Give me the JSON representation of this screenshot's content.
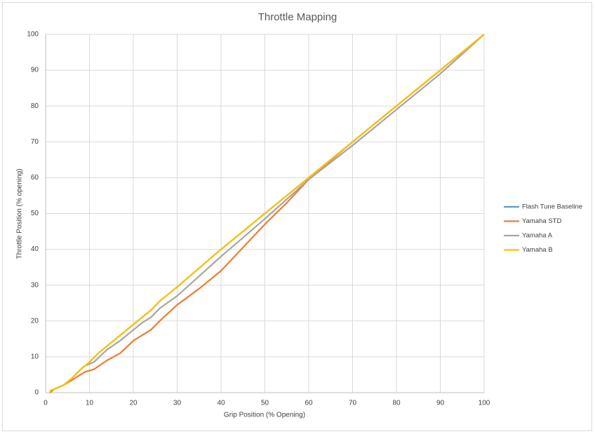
{
  "chart_data": {
    "type": "line",
    "title": "Throttle Mapping",
    "x_label": "Grip Position (% Opening)",
    "y_label": "Throttle Position (% opening)",
    "xlim": [
      0,
      100
    ],
    "xticks": [
      0,
      10,
      20,
      30,
      40,
      50,
      60,
      70,
      80,
      90,
      100
    ],
    "ylim": [
      0,
      100
    ],
    "yticks": [
      0,
      10,
      20,
      30,
      40,
      50,
      60,
      70,
      80,
      90,
      100
    ],
    "grid": true,
    "legend": "right",
    "series": [
      {
        "name": "Flash Tune Baseline",
        "color": "#5b9bd5",
        "x": [
          1,
          2,
          4,
          6,
          8,
          10,
          12,
          14,
          17,
          20,
          24,
          26,
          30,
          40,
          50,
          60,
          70,
          80,
          90,
          100
        ],
        "values": [
          0.5,
          1,
          2,
          4,
          6.5,
          8.5,
          11,
          13,
          16,
          19,
          23,
          25.5,
          29.5,
          40,
          50,
          60,
          70,
          80,
          90,
          100
        ]
      },
      {
        "name": "Yamaha STD",
        "color": "#ed7d31",
        "x": [
          1,
          2,
          4,
          6,
          9,
          11,
          14,
          17,
          20,
          22,
          24,
          26,
          30,
          35,
          40,
          45,
          50,
          55,
          60,
          70,
          80,
          90,
          100
        ],
        "values": [
          0,
          1,
          2,
          3.5,
          5.8,
          6.5,
          9,
          11,
          14.5,
          16,
          17.5,
          20,
          24.5,
          29,
          34,
          40.5,
          47,
          53,
          59.5,
          70,
          80,
          90,
          100
        ]
      },
      {
        "name": "Yamaha A",
        "color": "#a5a5a5",
        "x": [
          1,
          2,
          4,
          6,
          8,
          9,
          11,
          14,
          17,
          20,
          22,
          24,
          26,
          30,
          40,
          50,
          60,
          70,
          80,
          90,
          100
        ],
        "values": [
          0.5,
          1,
          2,
          4,
          6.5,
          7.5,
          8.5,
          12,
          14.5,
          17.5,
          19.5,
          21,
          23.5,
          27,
          38,
          48.5,
          59.5,
          69,
          79,
          89,
          100
        ]
      },
      {
        "name": "Yamaha B",
        "color": "#ffc000",
        "x": [
          1,
          2,
          4,
          6,
          8,
          10,
          12,
          14,
          17,
          20,
          24,
          26,
          30,
          40,
          50,
          60,
          70,
          80,
          90,
          100
        ],
        "values": [
          0.5,
          1,
          2,
          4,
          6.5,
          8.5,
          11,
          13,
          16,
          19,
          23,
          25.5,
          29.5,
          40,
          50,
          60,
          70,
          80,
          90,
          100
        ]
      }
    ]
  }
}
